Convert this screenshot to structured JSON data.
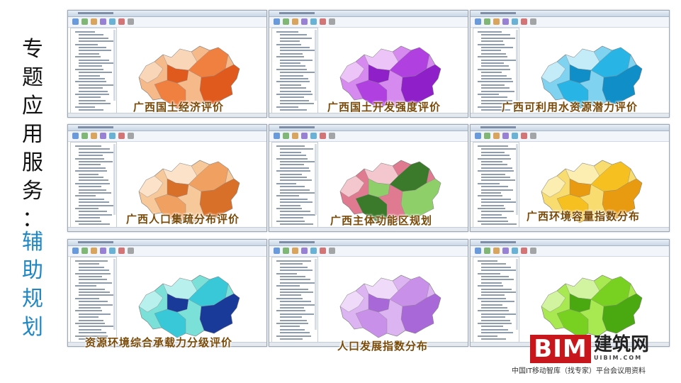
{
  "side_title": {
    "part1": [
      "专",
      "题",
      "应",
      "用",
      "服",
      "务",
      "："
    ],
    "part2": [
      "辅",
      "助",
      "规",
      "划"
    ]
  },
  "panels": [
    {
      "label": "广西国土经济评价",
      "colors": [
        "#f08040",
        "#e05a1e",
        "#f6b98a",
        "#fad6b8"
      ]
    },
    {
      "label": "广西国土开发强度评价",
      "colors": [
        "#b040e0",
        "#8f1fc8",
        "#d68af0",
        "#edc4f7"
      ]
    },
    {
      "label": "广西可利用水资源潜力评价",
      "colors": [
        "#28b4e4",
        "#0f8ec8",
        "#7fd2f0",
        "#c3ebf8"
      ]
    },
    {
      "label": "广西人口集疏分布评价",
      "colors": [
        "#f0a060",
        "#d8702a",
        "#f7c99a",
        "#fbe2c8"
      ]
    },
    {
      "label": "广西主体功能区规划",
      "colors": [
        "#3a7a2a",
        "#8fcf6a",
        "#e07a90",
        "#f4c7cf"
      ]
    },
    {
      "label": "广西环境容量指数分布",
      "colors": [
        "#f5c020",
        "#e89a10",
        "#f8dc70",
        "#fbeeb0"
      ]
    },
    {
      "label": "资源环境综合承载力分级评价",
      "colors": [
        "#38c8d8",
        "#1a3a9a",
        "#7ae0d8",
        "#b8f0ee"
      ]
    },
    {
      "label": "人口发展指数分布",
      "colors": [
        "#c890e8",
        "#a868d8",
        "#dcb4f2",
        "#efdaf9"
      ]
    },
    {
      "label": "",
      "colors": [
        "#78d020",
        "#4aa810",
        "#a8e850",
        "#d2f4a0"
      ]
    }
  ],
  "logo": {
    "bim": "BIM",
    "cn": "建筑网",
    "url": "UIBIM.COM"
  },
  "footer": "中国IT移动智库（找专家）平台会议用资料"
}
